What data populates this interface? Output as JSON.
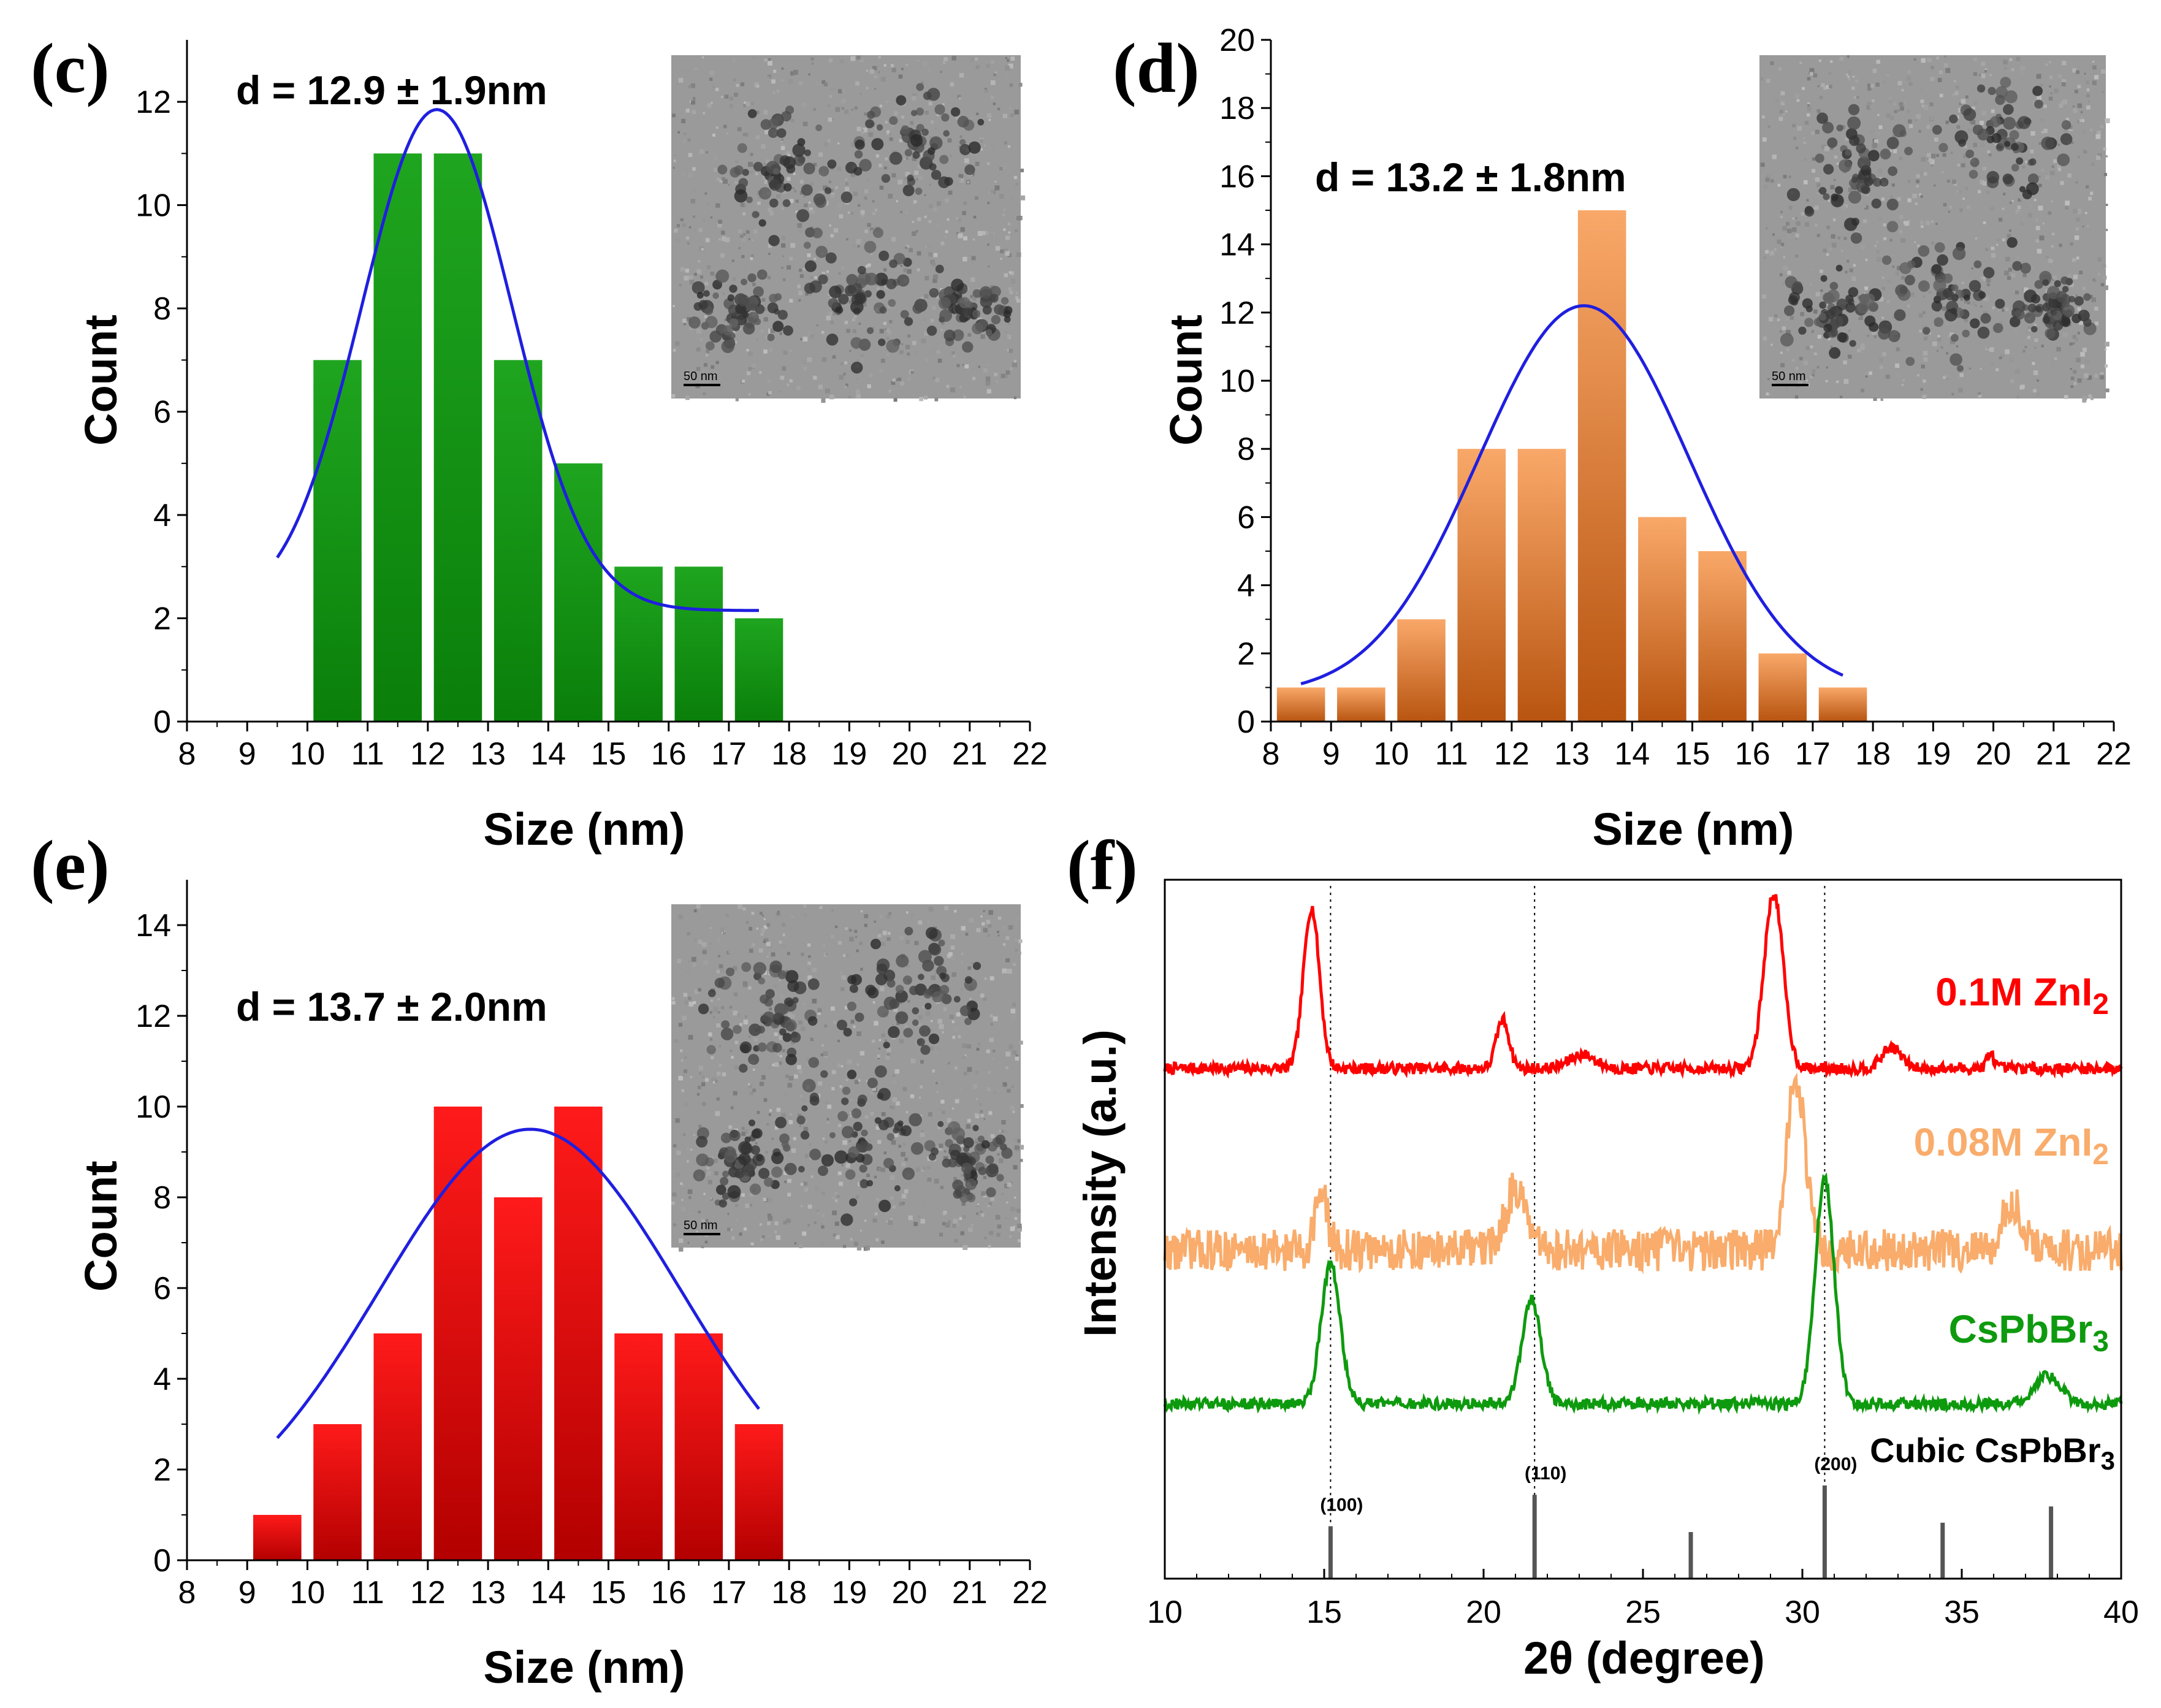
{
  "chart_data": [
    {
      "id": "c",
      "type": "bar",
      "panel_label": "(c)",
      "annotation": "d = 12.9 ± 1.9nm",
      "xlabel": "Size (nm)",
      "ylabel": "Count",
      "xlim": [
        8,
        22
      ],
      "ylim": [
        0,
        13.2
      ],
      "xticks": [
        8,
        9,
        10,
        11,
        12,
        13,
        14,
        15,
        16,
        17,
        18,
        19,
        20,
        21,
        22
      ],
      "yticks": [
        0,
        2,
        4,
        6,
        8,
        10,
        12
      ],
      "bin_width": 1,
      "x": [
        10.5,
        11.5,
        12.5,
        13.5,
        14.5,
        15.5,
        16.5,
        17.5
      ],
      "values": [
        7,
        11,
        11,
        7,
        5,
        3,
        3,
        2
      ],
      "fit": {
        "type": "gaussian",
        "mean": 12.15,
        "sigma": 1.25,
        "amplitude": 9.7,
        "offset": 2.15,
        "x_range": [
          9.5,
          17.5
        ]
      },
      "bar_color_top": "#1fa51f",
      "bar_color_bottom": "#0a7f0a",
      "fit_color": "#1f1fe0",
      "inset": "TEM micrograph",
      "inset_scale": "50 nm"
    },
    {
      "id": "d",
      "type": "bar",
      "panel_label": "(d)",
      "annotation": "d = 13.2 ± 1.8nm",
      "xlabel": "Size (nm)",
      "ylabel": "Count",
      "xlim": [
        8,
        22
      ],
      "ylim": [
        0,
        20
      ],
      "xticks": [
        8,
        9,
        10,
        11,
        12,
        13,
        14,
        15,
        16,
        17,
        18,
        19,
        20,
        21,
        22
      ],
      "yticks": [
        0,
        2,
        4,
        6,
        8,
        10,
        12,
        14,
        16,
        18,
        20
      ],
      "bin_width": 1,
      "x": [
        8.5,
        9.5,
        10.5,
        11.5,
        12.5,
        13.5,
        14.5,
        15.5,
        16.5,
        17.5
      ],
      "values": [
        1,
        1,
        3,
        8,
        8,
        15,
        6,
        5,
        2,
        1
      ],
      "fit": {
        "type": "gaussian",
        "mean": 13.2,
        "sigma": 1.75,
        "amplitude": 11.4,
        "offset": 0.8,
        "x_range": [
          8.5,
          17.5
        ]
      },
      "bar_color_top": "#f9a869",
      "bar_color_bottom": "#b85410",
      "fit_color": "#1f1fe0",
      "inset": "TEM micrograph",
      "inset_scale": "50 nm"
    },
    {
      "id": "e",
      "type": "bar",
      "panel_label": "(e)",
      "annotation": "d = 13.7 ± 2.0nm",
      "xlabel": "Size (nm)",
      "ylabel": "Count",
      "xlim": [
        8,
        22
      ],
      "ylim": [
        0,
        15
      ],
      "xticks": [
        8,
        9,
        10,
        11,
        12,
        13,
        14,
        15,
        16,
        17,
        18,
        19,
        20,
        21,
        22
      ],
      "yticks": [
        0,
        2,
        4,
        6,
        8,
        10,
        12,
        14
      ],
      "bin_width": 1,
      "x": [
        9.5,
        10.5,
        11.5,
        12.5,
        13.5,
        14.5,
        15.5,
        16.5,
        17.5
      ],
      "values": [
        1,
        3,
        5,
        10,
        8,
        10,
        5,
        5,
        3
      ],
      "fit": {
        "type": "gaussian",
        "mean": 13.7,
        "sigma": 2.5,
        "amplitude": 9.0,
        "offset": 0.5,
        "x_range": [
          9.5,
          17.5
        ]
      },
      "bar_color_top": "#ff1a1a",
      "bar_color_bottom": "#b30000",
      "fit_color": "#1f1fe0",
      "inset": "TEM micrograph",
      "inset_scale": "50 nm"
    },
    {
      "id": "f",
      "type": "line",
      "panel_label": "(f)",
      "xlabel": "2θ (degree)",
      "ylabel": "Intensity (a.u.)",
      "xlim": [
        10,
        40
      ],
      "xticks": [
        10,
        15,
        20,
        25,
        30,
        35,
        40
      ],
      "vlines": [
        15.2,
        21.6,
        30.7
      ],
      "series": [
        {
          "name": "0.1M ZnI",
          "sub": "2",
          "color": "#ff0000",
          "baseline": 0.73,
          "noise": 0.008,
          "peaks": [
            [
              14.6,
              0.23,
              0.25
            ],
            [
              20.6,
              0.07,
              0.2
            ],
            [
              23.1,
              0.02,
              0.4
            ],
            [
              29.1,
              0.25,
              0.3
            ],
            [
              32.8,
              0.03,
              0.3
            ],
            [
              35.9,
              0.02,
              0.12
            ]
          ]
        },
        {
          "name": "0.08M ZnI",
          "sub": "2",
          "color": "#f9ac6b",
          "baseline": 0.47,
          "noise": 0.03,
          "peaks": [
            [
              14.9,
              0.08,
              0.2
            ],
            [
              21.0,
              0.09,
              0.3
            ],
            [
              29.8,
              0.24,
              0.3
            ],
            [
              36.6,
              0.07,
              0.3
            ]
          ]
        },
        {
          "name": "CsPbBr",
          "sub": "3",
          "color": "#0e9a0e",
          "baseline": 0.25,
          "noise": 0.008,
          "peaks": [
            [
              15.2,
              0.2,
              0.3
            ],
            [
              21.5,
              0.15,
              0.3
            ],
            [
              30.7,
              0.32,
              0.3
            ],
            [
              37.7,
              0.04,
              0.4
            ]
          ]
        }
      ],
      "reference": {
        "name": "Cubic CsPbBr",
        "sub": "3",
        "sticks": [
          {
            "x": 15.2,
            "h": 0.45,
            "label": "(100)"
          },
          {
            "x": 21.6,
            "h": 0.72,
            "label": "(110)"
          },
          {
            "x": 26.5,
            "h": 0.4,
            "label": ""
          },
          {
            "x": 30.7,
            "h": 0.8,
            "label": "(200)"
          },
          {
            "x": 34.4,
            "h": 0.48,
            "label": ""
          },
          {
            "x": 37.8,
            "h": 0.62,
            "label": ""
          }
        ]
      }
    }
  ]
}
